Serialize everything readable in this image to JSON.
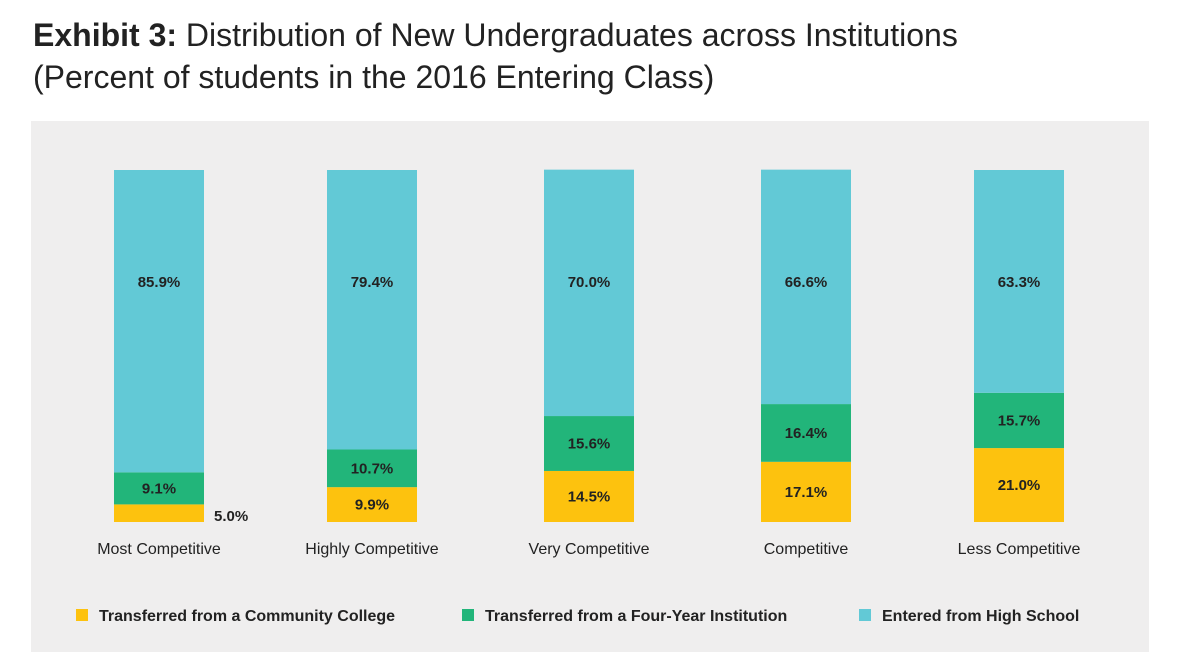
{
  "title": {
    "prefix": "Exhibit 3:",
    "text": "Distribution of New Undergraduates across Institutions",
    "subtitle": "(Percent of students in the 2016 Entering Class)"
  },
  "colors": {
    "community_college": "#fdc20e",
    "four_year": "#22b57a",
    "high_school": "#62c9d6",
    "panel": "#efeeee"
  },
  "chart_data": {
    "type": "bar",
    "stacked": true,
    "categories": [
      "Most Competitive",
      "Highly Competitive",
      "Very Competitive",
      "Competitive",
      "Less Competitive"
    ],
    "series": [
      {
        "name": "Transferred from a Community College",
        "values": [
          5.0,
          9.9,
          14.5,
          17.1,
          21.0
        ],
        "labels": [
          "5.0%",
          "9.9%",
          "14.5%",
          "17.1%",
          "21.0%"
        ]
      },
      {
        "name": "Transferred from a Four-Year Institution",
        "values": [
          9.1,
          10.7,
          15.6,
          16.4,
          15.7
        ],
        "labels": [
          "9.1%",
          "10.7%",
          "15.6%",
          "16.4%",
          "15.7%"
        ]
      },
      {
        "name": "Entered from High School",
        "values": [
          85.9,
          79.4,
          70.0,
          66.6,
          63.3
        ],
        "labels": [
          "85.9%",
          "79.4%",
          "70.0%",
          "66.6%",
          "63.3%"
        ]
      }
    ],
    "ylim": [
      0,
      100
    ],
    "grid": false,
    "legend_position": "bottom"
  }
}
